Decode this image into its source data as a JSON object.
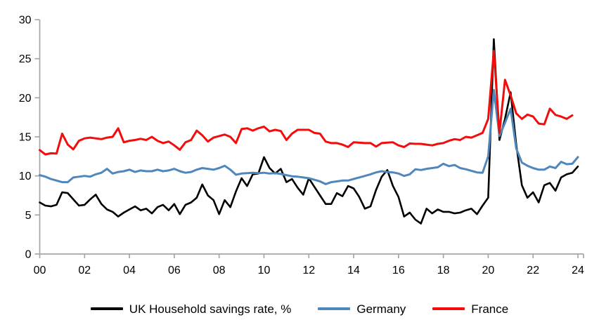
{
  "chart": {
    "axis_color": "#A6A6A6",
    "text_color": "#000000",
    "background": "#FFFFFF"
  },
  "chart_data": {
    "type": "line",
    "frequency": "quarterly",
    "x_start": "2000Q1",
    "x_tick_labels": [
      "00",
      "02",
      "04",
      "06",
      "08",
      "10",
      "12",
      "14",
      "16",
      "18",
      "20",
      "22",
      "24"
    ],
    "y_ticks": [
      0,
      5,
      10,
      15,
      20,
      25,
      30
    ],
    "ylim": [
      0,
      30
    ],
    "grid": false,
    "legend_position": "bottom",
    "series": [
      {
        "name": "UK Household savings rate, %",
        "color": "#000000",
        "values": [
          6.6,
          6.2,
          6.1,
          6.3,
          7.9,
          7.8,
          7.0,
          6.2,
          6.3,
          7.0,
          7.6,
          6.4,
          5.7,
          5.4,
          4.8,
          5.3,
          5.7,
          6.1,
          5.6,
          5.8,
          5.2,
          6.0,
          6.3,
          5.6,
          6.4,
          5.1,
          6.3,
          6.6,
          7.2,
          8.9,
          7.5,
          6.9,
          5.1,
          6.9,
          6.0,
          8.0,
          9.7,
          8.7,
          10.2,
          10.3,
          12.4,
          11.0,
          10.3,
          10.9,
          9.2,
          9.6,
          8.5,
          7.6,
          9.7,
          8.6,
          7.5,
          6.4,
          6.4,
          7.8,
          7.4,
          8.7,
          8.4,
          7.3,
          5.8,
          6.1,
          8.2,
          9.9,
          10.75,
          8.7,
          7.3,
          4.8,
          5.3,
          4.4,
          3.9,
          5.8,
          5.2,
          5.7,
          5.4,
          5.4,
          5.2,
          5.3,
          5.6,
          5.8,
          5.1,
          6.2,
          7.2,
          27.5,
          14.6,
          17.3,
          20.7,
          14.0,
          8.8,
          7.2,
          7.9,
          6.6,
          8.8,
          9.1,
          8.1,
          9.8,
          10.2,
          10.4,
          11.2
        ]
      },
      {
        "name": "Germany",
        "color": "#4F87BD",
        "values": [
          10.1,
          9.9,
          9.6,
          9.4,
          9.2,
          9.2,
          9.8,
          9.9,
          10.0,
          9.9,
          10.2,
          10.4,
          10.9,
          10.3,
          10.5,
          10.6,
          10.8,
          10.5,
          10.7,
          10.6,
          10.6,
          10.8,
          10.6,
          10.7,
          10.9,
          10.6,
          10.4,
          10.5,
          10.8,
          11.0,
          10.9,
          10.8,
          11.0,
          11.3,
          10.8,
          10.15,
          10.3,
          10.35,
          10.4,
          10.35,
          10.4,
          10.3,
          10.35,
          10.25,
          10.1,
          9.95,
          9.9,
          9.8,
          9.7,
          9.5,
          9.3,
          8.95,
          9.2,
          9.3,
          9.4,
          9.4,
          9.6,
          9.8,
          10.0,
          10.2,
          10.45,
          10.6,
          10.5,
          10.45,
          10.3,
          10.0,
          10.2,
          10.85,
          10.75,
          10.9,
          11.0,
          11.1,
          11.55,
          11.25,
          11.4,
          11.0,
          10.85,
          10.65,
          10.45,
          10.4,
          12.5,
          21.0,
          15.1,
          16.8,
          18.6,
          13.5,
          11.7,
          11.3,
          11.0,
          10.8,
          10.8,
          11.2,
          11.0,
          11.8,
          11.5,
          11.55,
          12.4
        ]
      },
      {
        "name": "France",
        "color": "#F40B0B",
        "values": [
          13.3,
          12.75,
          12.9,
          12.85,
          15.4,
          14.0,
          13.4,
          14.5,
          14.8,
          14.9,
          14.8,
          14.7,
          14.9,
          15.0,
          16.1,
          14.3,
          14.5,
          14.6,
          14.75,
          14.6,
          15.0,
          14.5,
          14.2,
          14.4,
          13.9,
          13.35,
          14.3,
          14.6,
          15.8,
          15.2,
          14.4,
          14.9,
          15.1,
          15.3,
          15.0,
          14.2,
          16.0,
          16.1,
          15.8,
          16.1,
          16.3,
          15.7,
          15.9,
          15.75,
          14.6,
          15.4,
          15.9,
          15.9,
          15.9,
          15.5,
          15.4,
          14.4,
          14.2,
          14.2,
          14.0,
          13.7,
          14.3,
          14.25,
          14.2,
          14.2,
          13.75,
          14.2,
          14.25,
          14.3,
          13.9,
          13.7,
          14.15,
          14.1,
          14.1,
          14.0,
          13.9,
          14.1,
          14.2,
          14.5,
          14.7,
          14.6,
          15.0,
          14.9,
          15.2,
          15.5,
          17.3,
          26.0,
          15.5,
          22.3,
          20.3,
          18.0,
          17.3,
          17.85,
          17.6,
          16.7,
          16.6,
          18.6,
          17.8,
          17.6,
          17.3,
          17.75
        ]
      }
    ]
  }
}
